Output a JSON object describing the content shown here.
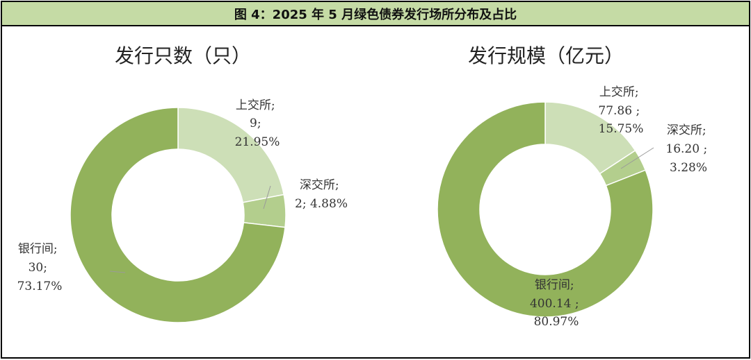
{
  "header": {
    "title": "图 4：2025 年 5 月绿色债券发行场所分布及占比"
  },
  "colors": {
    "bank": "#92b25b",
    "sse": "#cddfb7",
    "szse": "#b3ce8d",
    "header_bg": "#c5dba5"
  },
  "chart_data": [
    {
      "type": "pie",
      "donut": true,
      "title": "发行只数（只）",
      "categories": [
        "上交所",
        "深交所",
        "银行间"
      ],
      "values": [
        9,
        2,
        30
      ],
      "percents": [
        "21.95%",
        "4.88%",
        "73.17%"
      ],
      "labels": [
        [
          "上交所;",
          "9;",
          "21.95%"
        ],
        [
          "深交所;",
          "2; 4.88%"
        ],
        [
          "银行间;",
          "30;",
          "73.17%"
        ]
      ]
    },
    {
      "type": "pie",
      "donut": true,
      "title": "发行规模（亿元）",
      "categories": [
        "上交所",
        "深交所",
        "银行间"
      ],
      "values": [
        77.86,
        16.2,
        400.14
      ],
      "percents": [
        "15.75%",
        "3.28%",
        "80.97%"
      ],
      "labels": [
        [
          "上交所;",
          "77.86 ;",
          "15.75%"
        ],
        [
          "深交所;",
          "16.20 ;",
          "3.28%"
        ],
        [
          "银行间;",
          "400.14 ;",
          "80.97%"
        ]
      ]
    }
  ]
}
